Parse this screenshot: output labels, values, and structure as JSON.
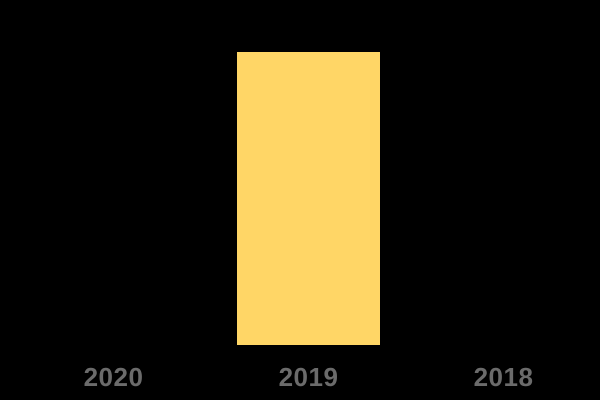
{
  "chart_data": {
    "type": "bar",
    "title": "",
    "xlabel": "",
    "ylabel": "",
    "categories": [
      "2020",
      "2019",
      "2018"
    ],
    "values": [
      0,
      1,
      0
    ],
    "ylim": [
      0,
      1
    ],
    "grid": false,
    "legend": false,
    "axis_lines_visible": false,
    "bar_color": "#ffd666",
    "background_color": "#000000",
    "tick_label_color": "#6b6b6b"
  }
}
